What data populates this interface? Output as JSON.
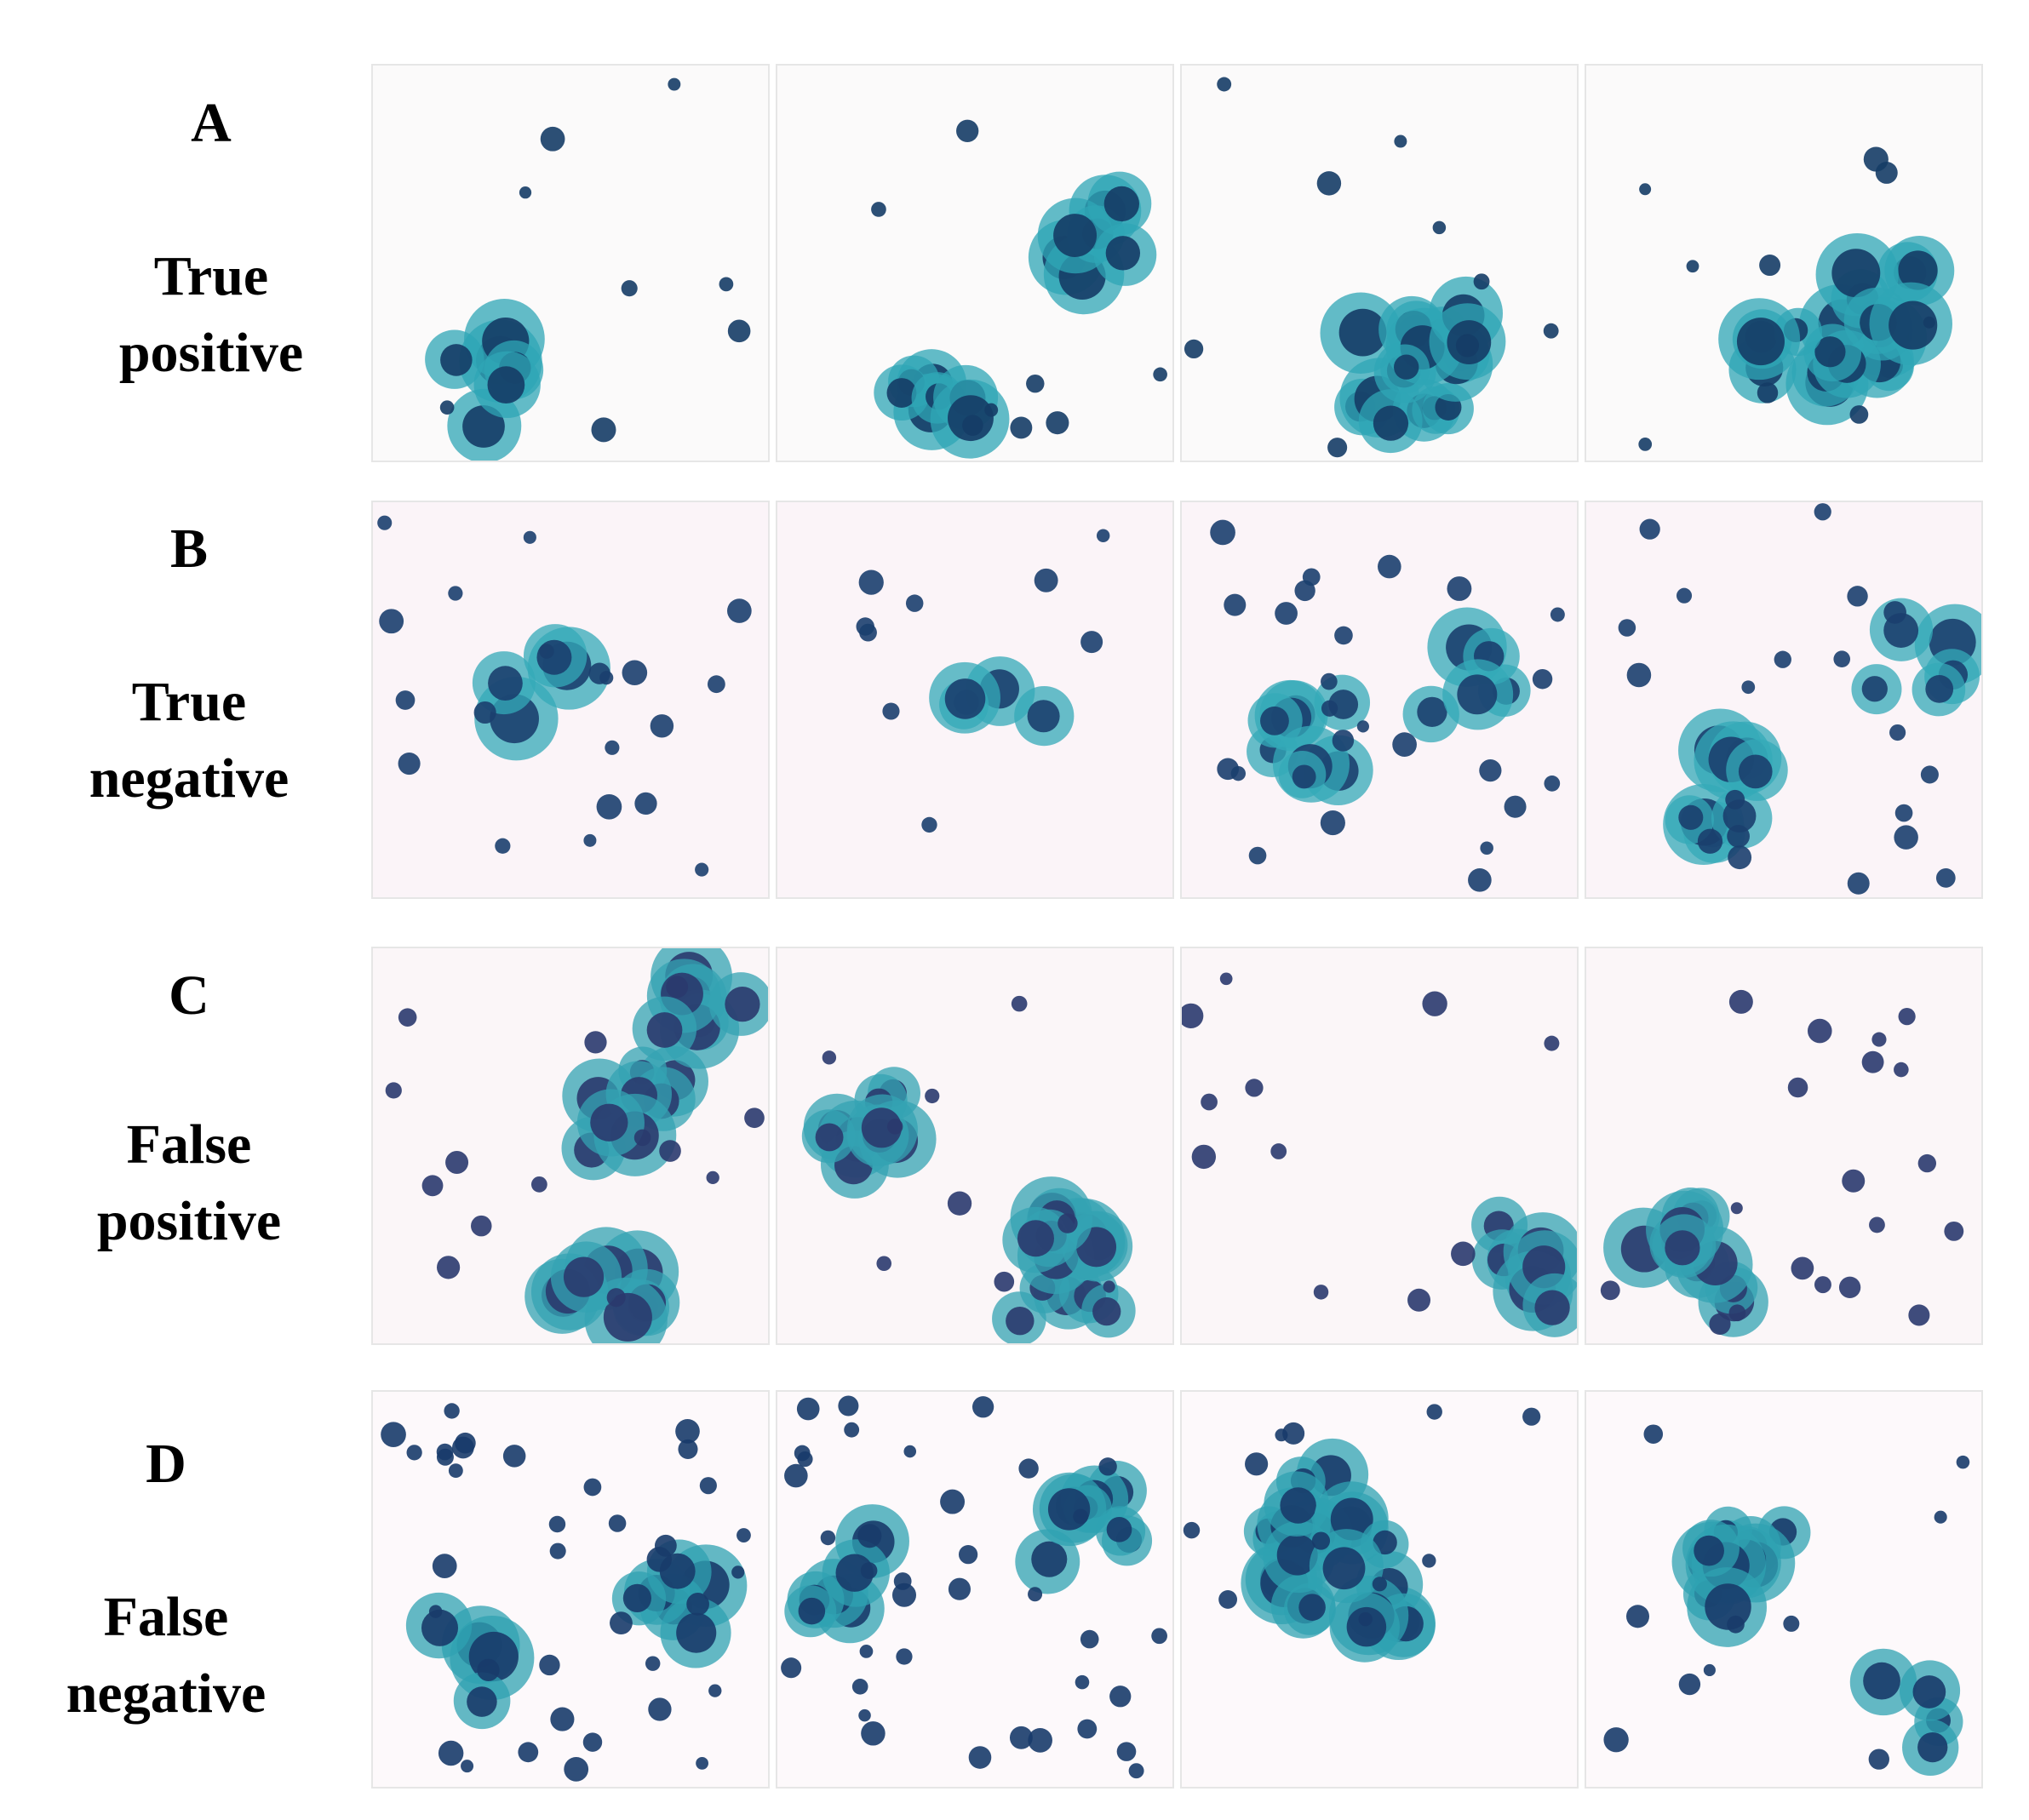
{
  "figure": {
    "rows": [
      {
        "letter": "A",
        "line1": "True",
        "line2": "positive"
      },
      {
        "letter": "B",
        "line1": "True",
        "line2": "negative"
      },
      {
        "letter": "C",
        "line1": "False",
        "line2": "positive"
      },
      {
        "letter": "D",
        "line1": "False",
        "line2": "negative"
      }
    ]
  }
}
